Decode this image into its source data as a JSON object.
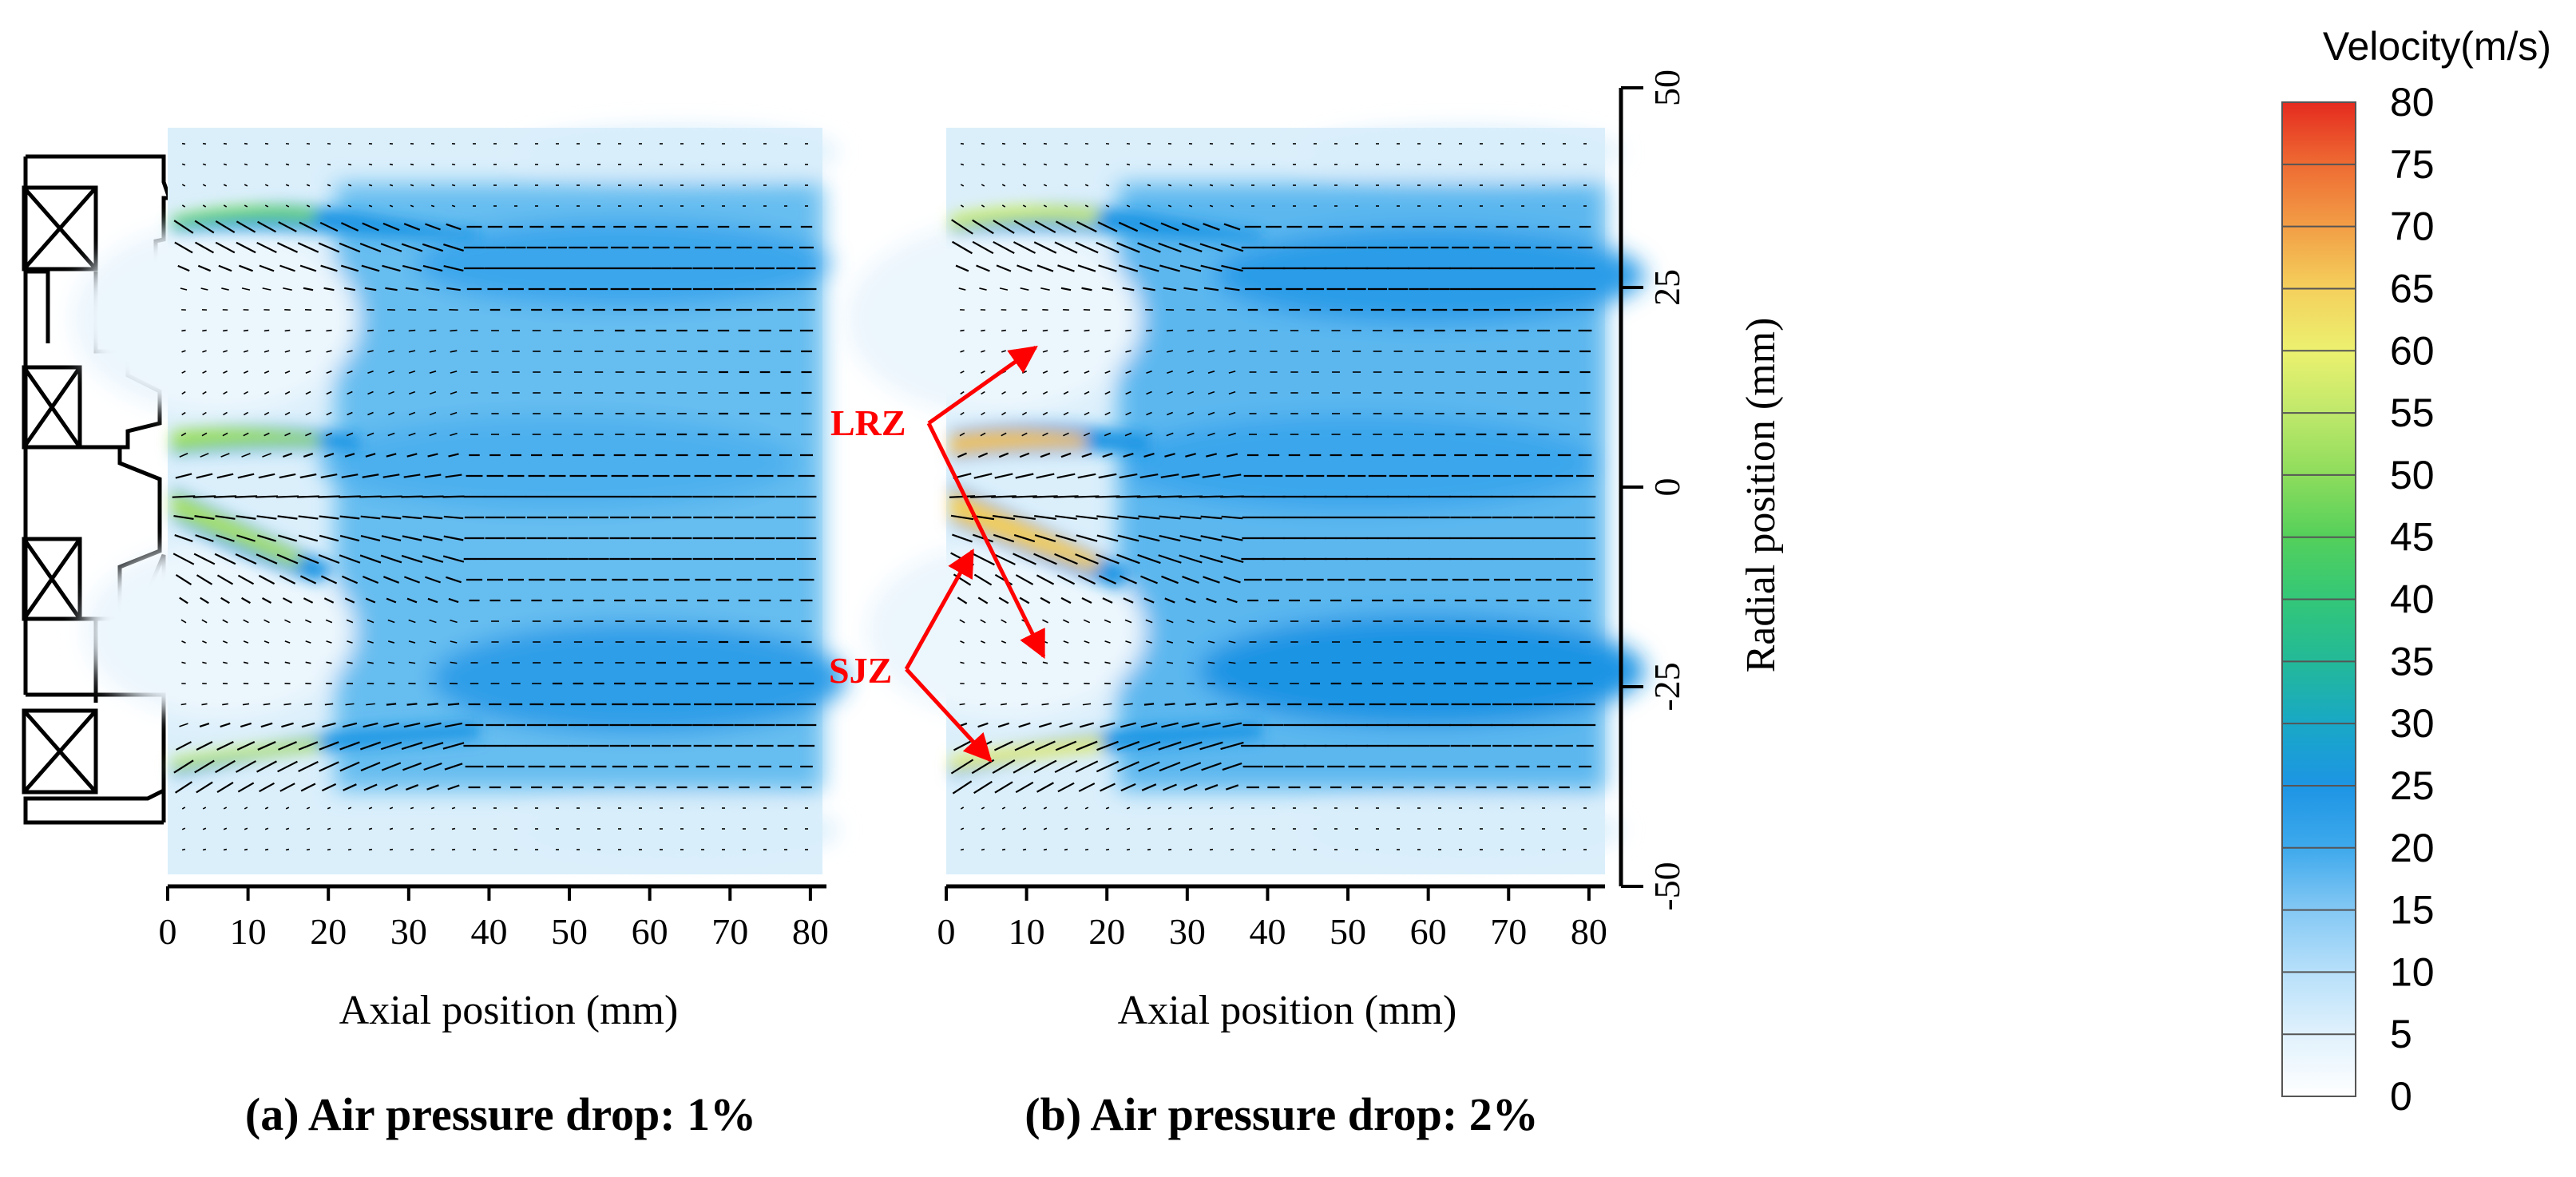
{
  "chart_data": [
    {
      "type": "heatmap",
      "panel": "a",
      "caption": "(a) Air pressure drop: 1%",
      "xlabel": "Axial position (mm)",
      "xlim": [
        0,
        82
      ],
      "x_ticks": [
        0,
        10,
        20,
        30,
        40,
        50,
        60,
        70,
        80
      ],
      "ylim": [
        -50,
        50
      ],
      "field": "velocity magnitude with velocity vectors",
      "features": [
        {
          "name": "upper jet",
          "x_range": [
            0,
            30
          ],
          "radial_start": 34,
          "radial_end": 27,
          "peak_velocity": 45
        },
        {
          "name": "central jet",
          "x_range": [
            0,
            30
          ],
          "radial_start": 6,
          "radial_end": 0,
          "peak_velocity": 50
        },
        {
          "name": "inner jet",
          "x_range": [
            0,
            25
          ],
          "radial_start": -6,
          "radial_end": -15,
          "peak_velocity": 50
        },
        {
          "name": "lower jet",
          "x_range": [
            0,
            30
          ],
          "radial_start": -35,
          "radial_end": -27,
          "peak_velocity": 55
        }
      ]
    },
    {
      "type": "heatmap",
      "panel": "b",
      "caption": "(b) Air pressure drop: 2%",
      "xlabel": "Axial position (mm)",
      "xlim": [
        0,
        82
      ],
      "x_ticks": [
        0,
        10,
        20,
        30,
        40,
        50,
        60,
        70,
        80
      ],
      "ylabel": "Radial position (mm)",
      "ylim": [
        -50,
        50
      ],
      "y_ticks": [
        50,
        25,
        0,
        -25,
        -50
      ],
      "field": "velocity magnitude with velocity vectors",
      "features": [
        {
          "name": "upper jet",
          "x_range": [
            0,
            30
          ],
          "radial_start": 34,
          "radial_end": 27,
          "peak_velocity": 55
        },
        {
          "name": "central jet",
          "x_range": [
            0,
            32
          ],
          "radial_start": 6,
          "radial_end": 0,
          "peak_velocity": 65
        },
        {
          "name": "inner jet",
          "x_range": [
            0,
            25
          ],
          "radial_start": -6,
          "radial_end": -15,
          "peak_velocity": 65
        },
        {
          "name": "lower jet",
          "x_range": [
            0,
            30
          ],
          "radial_start": -35,
          "radial_end": -27,
          "peak_velocity": 60
        }
      ],
      "annotations": [
        {
          "label": "LRZ",
          "points_to": [
            [
              11,
              18
            ],
            [
              12,
              -21
            ]
          ],
          "color": "#ff0000"
        },
        {
          "label": "SJZ",
          "points_to": [
            [
              3,
              -8
            ],
            [
              5,
              -35
            ]
          ],
          "color": "#ff0000"
        }
      ]
    }
  ],
  "colorbar": {
    "title": "Velocity(m/s)",
    "min": 0,
    "max": 80,
    "levels": [
      0,
      5,
      10,
      15,
      20,
      25,
      30,
      35,
      40,
      45,
      50,
      55,
      60,
      65,
      70,
      75,
      80
    ],
    "colors": [
      "#ffffff",
      "#e0f1fc",
      "#b7e0fa",
      "#84c8f4",
      "#3ea9ec",
      "#1d95e4",
      "#19a8c6",
      "#23b998",
      "#33c778",
      "#54d05b",
      "#8ddc5c",
      "#bfe86b",
      "#ecf16f",
      "#f4d05c",
      "#f29e46",
      "#ee6b33",
      "#e52b1f"
    ]
  },
  "colors": {
    "annotation": "#ff0000",
    "axis": "#000000"
  }
}
